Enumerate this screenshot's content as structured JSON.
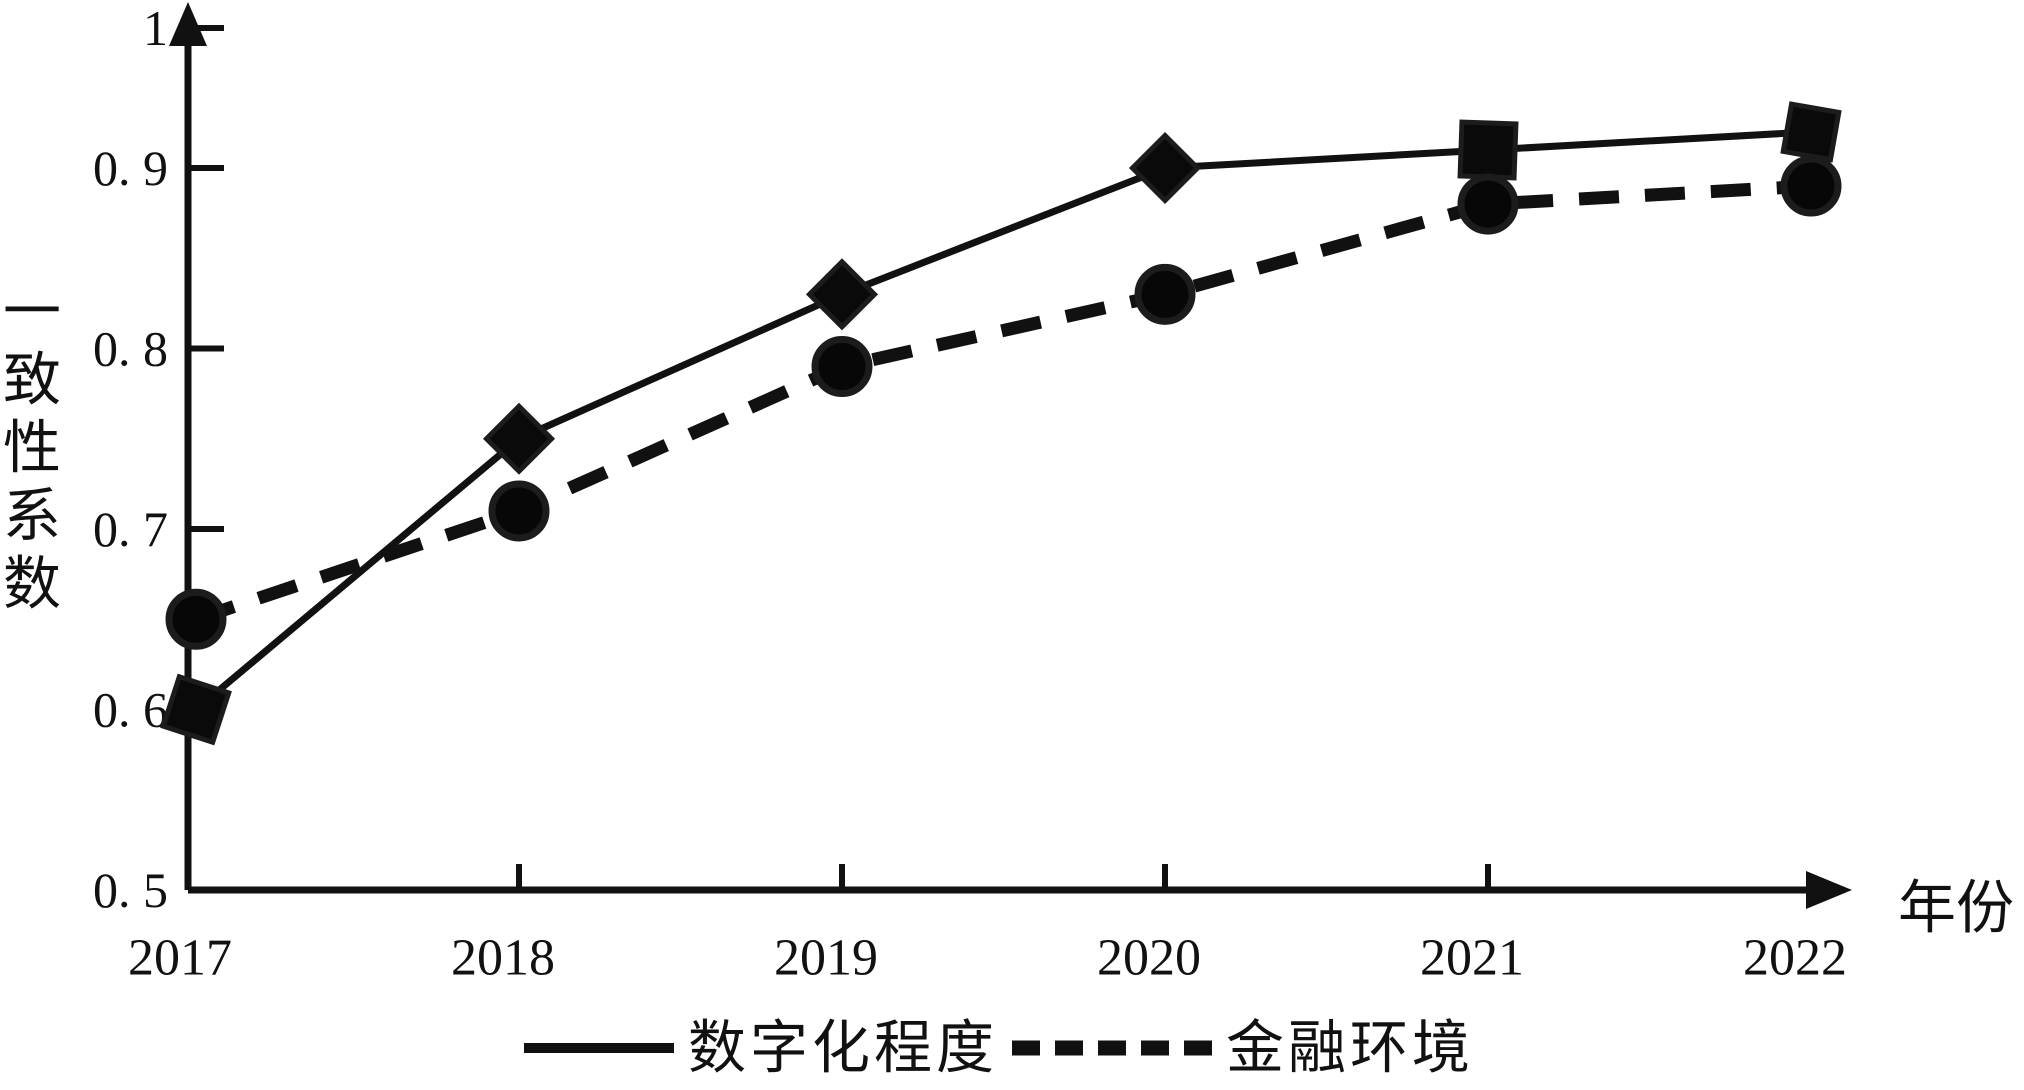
{
  "chart_data": {
    "type": "line",
    "title": "",
    "x_label": "年份",
    "y_label": "一致性系数",
    "x_categories": [
      "2017",
      "2018",
      "2019",
      "2020",
      "2021",
      "2022"
    ],
    "x_tick_marks": [
      "2018",
      "2019",
      "2020",
      "2021"
    ],
    "y_ticks": {
      "labels": [
        "1",
        "0. 9",
        "0. 8",
        "0. 7",
        "0. 6",
        "0. 5"
      ],
      "values": [
        1,
        0.9,
        0.8,
        0.7,
        0.6,
        0.5
      ]
    },
    "ylim": [
      0.5,
      1
    ],
    "grid": false,
    "legend_position": "bottom-center",
    "series": [
      {
        "name": "数字化程度",
        "line_style": "solid",
        "marker": "filled-diamond-square",
        "marker_shapes": [
          "square",
          "diamond",
          "diamond",
          "diamond",
          "square",
          "square"
        ],
        "values": [
          0.6,
          0.75,
          0.83,
          0.9,
          0.91,
          0.92
        ]
      },
      {
        "name": "金融环境",
        "line_style": "dashed",
        "marker": "filled-circle",
        "marker_shapes": [
          "circle",
          "circle",
          "circle",
          "circle",
          "circle",
          "circle"
        ],
        "values": [
          0.65,
          0.71,
          0.79,
          0.83,
          0.88,
          0.89
        ]
      }
    ],
    "colors": {
      "ink": "#111111",
      "background": "#ffffff"
    }
  },
  "legend": {
    "items": [
      {
        "label": "数字化程度",
        "swatch": "solid-line"
      },
      {
        "label": "金融环境",
        "swatch": "thick-dashed-line"
      }
    ]
  }
}
